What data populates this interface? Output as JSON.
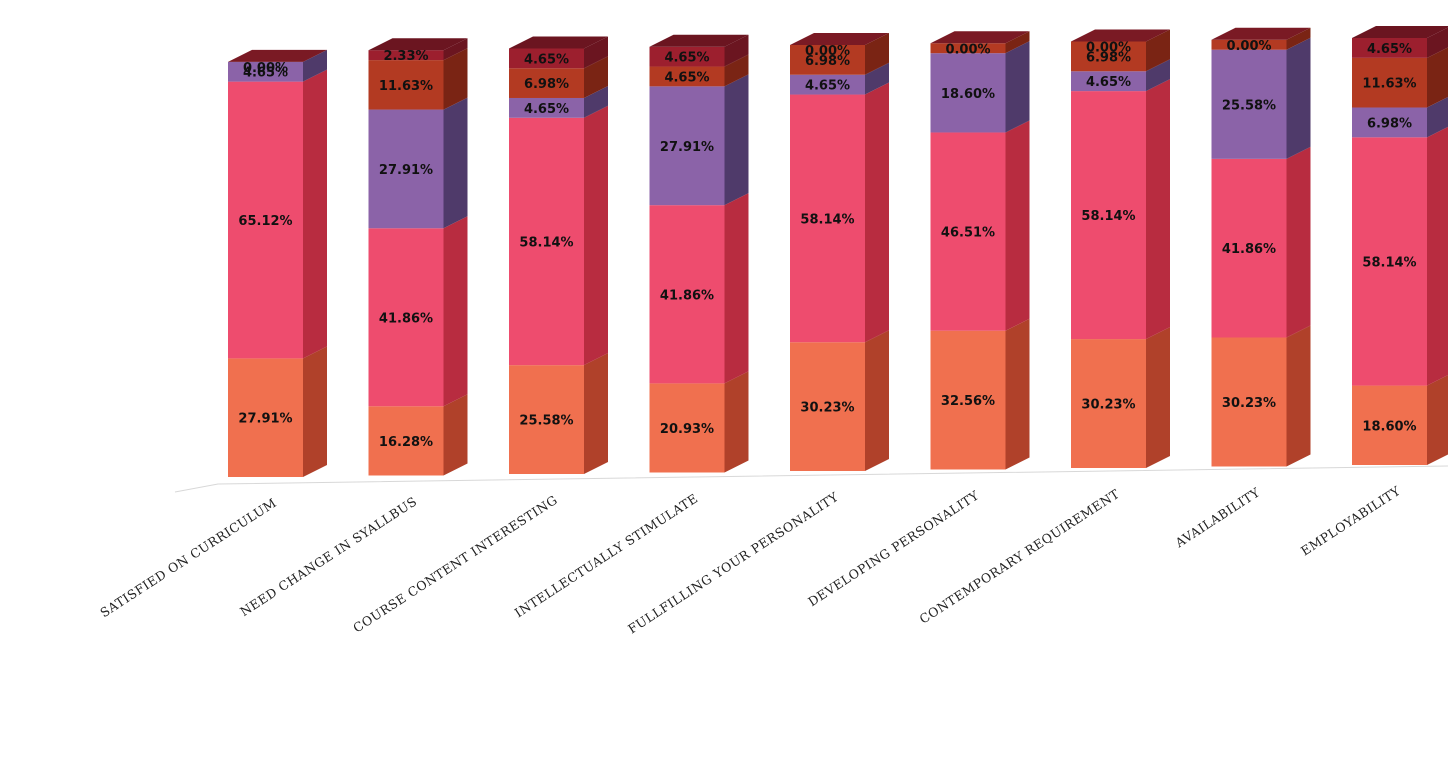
{
  "chart_data": {
    "type": "bar",
    "stacked": true,
    "three_d": true,
    "title": "",
    "xlabel": "",
    "ylabel": "",
    "ylim": [
      0,
      100
    ],
    "grid": false,
    "legend": "none",
    "categories": [
      "SATISFIED ON CURRICULUM",
      "NEED CHANGE IN SYALLBUS",
      "COURSE CONTENT INTERESTING",
      "INTELLECTUALLY STIMULATE",
      "FULLFILLING YOUR PERSONALITY",
      "DEVELOPING PERSONALITY",
      "CONTEMPORARY REQUIREMENT",
      "AVAILABILITY",
      "EMPLOYABILITY"
    ],
    "series": [
      {
        "color": "#f0704f",
        "side_color": "#b0412a",
        "values": [
          27.91,
          16.28,
          25.58,
          20.93,
          30.23,
          32.56,
          30.23,
          30.23,
          18.6
        ],
        "labels": [
          "27.91%",
          "16.28%",
          "25.58%",
          "20.93%",
          "30.23%",
          "32.56%",
          "30.23%",
          "30.23%",
          "18.60%"
        ]
      },
      {
        "color": "#ee4c6e",
        "side_color": "#b82c40",
        "values": [
          65.12,
          41.86,
          58.14,
          41.86,
          58.14,
          46.51,
          58.14,
          41.86,
          58.14
        ],
        "labels": [
          "65.12%",
          "41.86%",
          "58.14%",
          "41.86%",
          "58.14%",
          "46.51%",
          "58.14%",
          "41.86%",
          "58.14%"
        ]
      },
      {
        "color": "#8b63a8",
        "side_color": "#4f3a6a",
        "values": [
          4.65,
          27.91,
          4.65,
          27.91,
          4.65,
          18.6,
          4.65,
          25.58,
          6.98
        ],
        "labels": [
          "4.65%",
          "27.91%",
          "4.65%",
          "27.91%",
          "4.65%",
          "18.60%",
          "4.65%",
          "25.58%",
          "6.98%"
        ]
      },
      {
        "color": "#b33a22",
        "side_color": "#7a2414",
        "values": [
          0,
          11.63,
          6.98,
          4.65,
          6.98,
          2.33,
          6.98,
          2.33,
          11.63
        ],
        "labels": [
          "",
          "11.63%",
          "6.98%",
          "4.65%",
          "6.98%",
          "",
          "6.98%",
          "",
          "11.63%"
        ]
      },
      {
        "color": "#9c1f2e",
        "side_color": "#6b1520",
        "values": [
          0,
          2.33,
          4.65,
          4.65,
          0,
          0,
          0,
          0,
          4.65
        ],
        "labels": [
          "0.00%",
          "2.33%",
          "4.65%",
          "4.65%",
          "0.00%",
          "0.00%",
          "0.00%",
          "0.00%",
          "4.65%"
        ]
      }
    ]
  }
}
